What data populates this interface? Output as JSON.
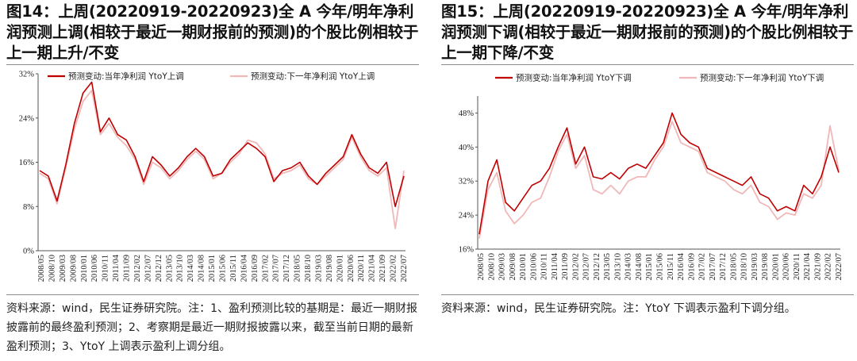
{
  "panels": [
    {
      "title": "图14：上周(20220919-20220923)全 A 今年/明年净利润预测上调(相较于最近一期财报前的预测)的个股比例相较于上一期上升/不变",
      "note": "资料来源：wind，民生证券研究院。注：1、盈利预测比较的基期是：最近一期财报披露前的最终盈利预测；2、考察期是最近一期财报披露以来，截至当前日期的最新盈利预测；3、YtoY 上调表示盈利上调分组。"
    },
    {
      "title": "图15：上周(20220919-20220923)全 A 今年/明年净利润预测下调(相较于最近一期财报前的预测)的个股比例相较于上一期下降/不变",
      "note": "资料来源：wind，民生证券研究院。注：YtoY 下调表示盈利下调分组。"
    }
  ],
  "chart_data": [
    {
      "type": "line",
      "x_labels": [
        "2008/05",
        "2008/10",
        "2009/03",
        "2009/08",
        "2010/01",
        "2010/06",
        "2010/11",
        "2011/04",
        "2011/09",
        "2012/02",
        "2012/07",
        "2012/12",
        "2013/05",
        "2013/10",
        "2014/03",
        "2014/08",
        "2015/01",
        "2015/06",
        "2015/11",
        "2016/04",
        "2016/09",
        "2017/02",
        "2017/07",
        "2017/12",
        "2018/05",
        "2018/10",
        "2019/03",
        "2019/08",
        "2020/01",
        "2020/06",
        "2020/11",
        "2021/04",
        "2021/09",
        "2022/02",
        "2022/07"
      ],
      "y_ticks": [
        "0%",
        "8%",
        "16%",
        "24%",
        "32%"
      ],
      "ylim": [
        0,
        32
      ],
      "legend_placement": "top",
      "colors": [
        "#c00000",
        "#f0b8b8"
      ],
      "series": [
        {
          "name": "预测变动:当年净利润 YtoY上调",
          "values": [
            14.5,
            13.5,
            9.0,
            15.5,
            23.0,
            28.5,
            30.5,
            21.5,
            24.0,
            21.0,
            20.0,
            17.0,
            12.5,
            17.0,
            15.5,
            13.5,
            15.0,
            17.0,
            18.5,
            17.0,
            13.5,
            14.0,
            16.5,
            18.0,
            19.5,
            18.5,
            17.0,
            12.5,
            14.5,
            15.0,
            16.0,
            13.5,
            12.0,
            14.0,
            15.5,
            17.0,
            21.0,
            17.5,
            15.0,
            14.0,
            16.0,
            8.0,
            13.5
          ],
          "name_": ""
        },
        {
          "name": "预测变动:下一年净利润 YtoY上调",
          "values": [
            14.0,
            13.0,
            8.5,
            15.0,
            22.0,
            27.0,
            29.0,
            21.0,
            23.0,
            20.5,
            19.0,
            16.5,
            12.0,
            16.0,
            15.0,
            13.0,
            14.5,
            16.5,
            18.0,
            16.5,
            13.0,
            14.0,
            16.0,
            17.5,
            20.0,
            19.5,
            17.5,
            13.0,
            14.0,
            14.5,
            15.5,
            13.0,
            12.0,
            13.5,
            15.0,
            16.5,
            20.5,
            17.0,
            14.5,
            13.5,
            15.0,
            4.0,
            14.5
          ]
        }
      ]
    },
    {
      "type": "line",
      "x_labels": [
        "2008/05",
        "2008/10",
        "2009/03",
        "2009/08",
        "2010/01",
        "2010/06",
        "2010/11",
        "2011/04",
        "2011/09",
        "2012/02",
        "2012/07",
        "2012/12",
        "2013/05",
        "2013/10",
        "2014/03",
        "2014/08",
        "2015/01",
        "2015/06",
        "2015/11",
        "2016/04",
        "2016/09",
        "2017/02",
        "2017/07",
        "2017/12",
        "2018/05",
        "2018/10",
        "2019/03",
        "2019/08",
        "2020/01",
        "2020/06",
        "2020/11",
        "2021/04",
        "2021/09",
        "2022/02",
        "2022/07"
      ],
      "y_ticks": [
        "16%",
        "24%",
        "32%",
        "40%",
        "48%"
      ],
      "ylim": [
        16,
        52
      ],
      "legend_placement": "top",
      "colors": [
        "#c00000",
        "#f0b8b8"
      ],
      "series": [
        {
          "name": "预测变动:当年净利润 YtoY下调",
          "values": [
            19.5,
            32.0,
            37.0,
            27.0,
            25.0,
            28.0,
            31.0,
            32.0,
            35.0,
            40.0,
            44.5,
            36.0,
            40.0,
            33.0,
            32.5,
            34.0,
            32.5,
            35.0,
            36.0,
            35.0,
            38.0,
            41.0,
            48.0,
            43.0,
            41.0,
            40.0,
            35.0,
            34.0,
            33.0,
            32.0,
            31.0,
            33.0,
            29.0,
            28.0,
            25.0,
            26.0,
            25.0,
            31.0,
            29.0,
            33.0,
            40.0,
            34.0
          ],
          "name_": ""
        },
        {
          "name": "预测变动:下一年净利润 YtoY下调",
          "values": [
            18.5,
            30.0,
            34.0,
            25.0,
            22.0,
            24.0,
            27.0,
            28.0,
            33.0,
            39.0,
            43.0,
            35.0,
            38.0,
            30.0,
            29.0,
            31.0,
            29.0,
            32.0,
            33.0,
            33.0,
            37.0,
            40.0,
            46.0,
            41.0,
            40.0,
            39.0,
            34.0,
            33.0,
            32.0,
            30.0,
            29.0,
            31.0,
            27.0,
            26.0,
            23.0,
            24.5,
            24.0,
            29.0,
            28.0,
            31.0,
            45.0,
            34.5
          ]
        }
      ]
    }
  ]
}
